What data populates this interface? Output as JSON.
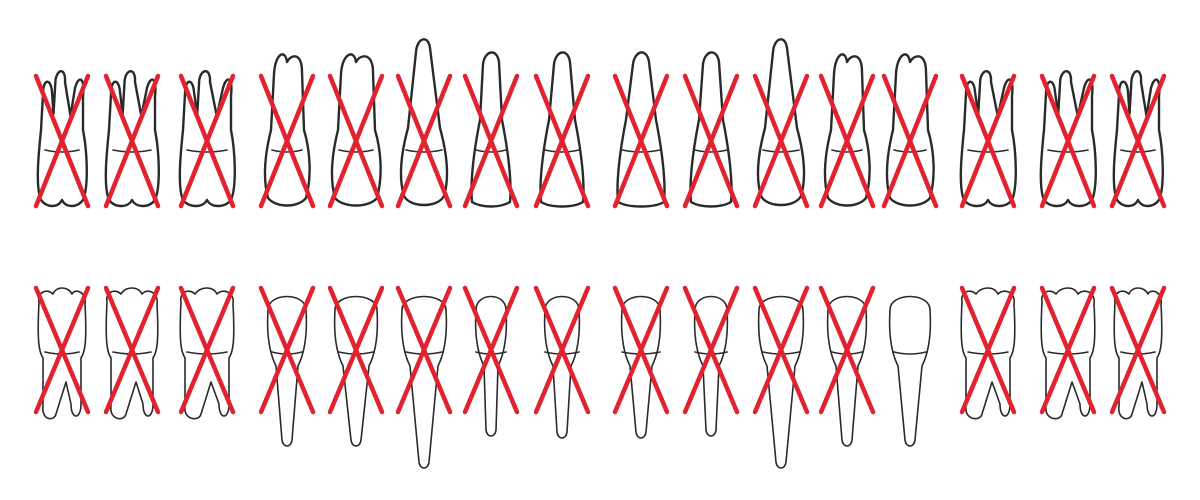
{
  "colors": {
    "outline": "#2a2a2a",
    "extraction_mark": "#e0232e",
    "background": "#ffffff"
  },
  "legend_icon": "extraction-x-mark",
  "arches": [
    {
      "name": "upper",
      "teeth": [
        {
          "type": "molar",
          "marked": true
        },
        {
          "type": "molar",
          "marked": true
        },
        {
          "type": "molar",
          "marked": true
        },
        {
          "type": "premolar",
          "marked": true
        },
        {
          "type": "premolar",
          "marked": true
        },
        {
          "type": "canine",
          "marked": true
        },
        {
          "type": "lateral-incisor",
          "marked": true
        },
        {
          "type": "central-incisor",
          "marked": true
        },
        {
          "type": "central-incisor",
          "marked": true
        },
        {
          "type": "lateral-incisor",
          "marked": true
        },
        {
          "type": "canine",
          "marked": true
        },
        {
          "type": "premolar",
          "marked": true
        },
        {
          "type": "premolar",
          "marked": true
        },
        {
          "type": "molar",
          "marked": true
        },
        {
          "type": "molar",
          "marked": true
        },
        {
          "type": "molar",
          "marked": true
        }
      ]
    },
    {
      "name": "lower",
      "teeth": [
        {
          "type": "molar",
          "marked": true
        },
        {
          "type": "molar",
          "marked": true
        },
        {
          "type": "molar",
          "marked": true
        },
        {
          "type": "premolar",
          "marked": true
        },
        {
          "type": "premolar",
          "marked": true
        },
        {
          "type": "canine",
          "marked": true
        },
        {
          "type": "lateral-incisor",
          "marked": true
        },
        {
          "type": "central-incisor",
          "marked": true
        },
        {
          "type": "central-incisor",
          "marked": true
        },
        {
          "type": "lateral-incisor",
          "marked": true
        },
        {
          "type": "canine",
          "marked": true
        },
        {
          "type": "premolar",
          "marked": true
        },
        {
          "type": "premolar",
          "marked": false
        },
        {
          "type": "molar",
          "marked": true
        },
        {
          "type": "molar",
          "marked": true
        },
        {
          "type": "molar",
          "marked": true
        }
      ]
    }
  ]
}
